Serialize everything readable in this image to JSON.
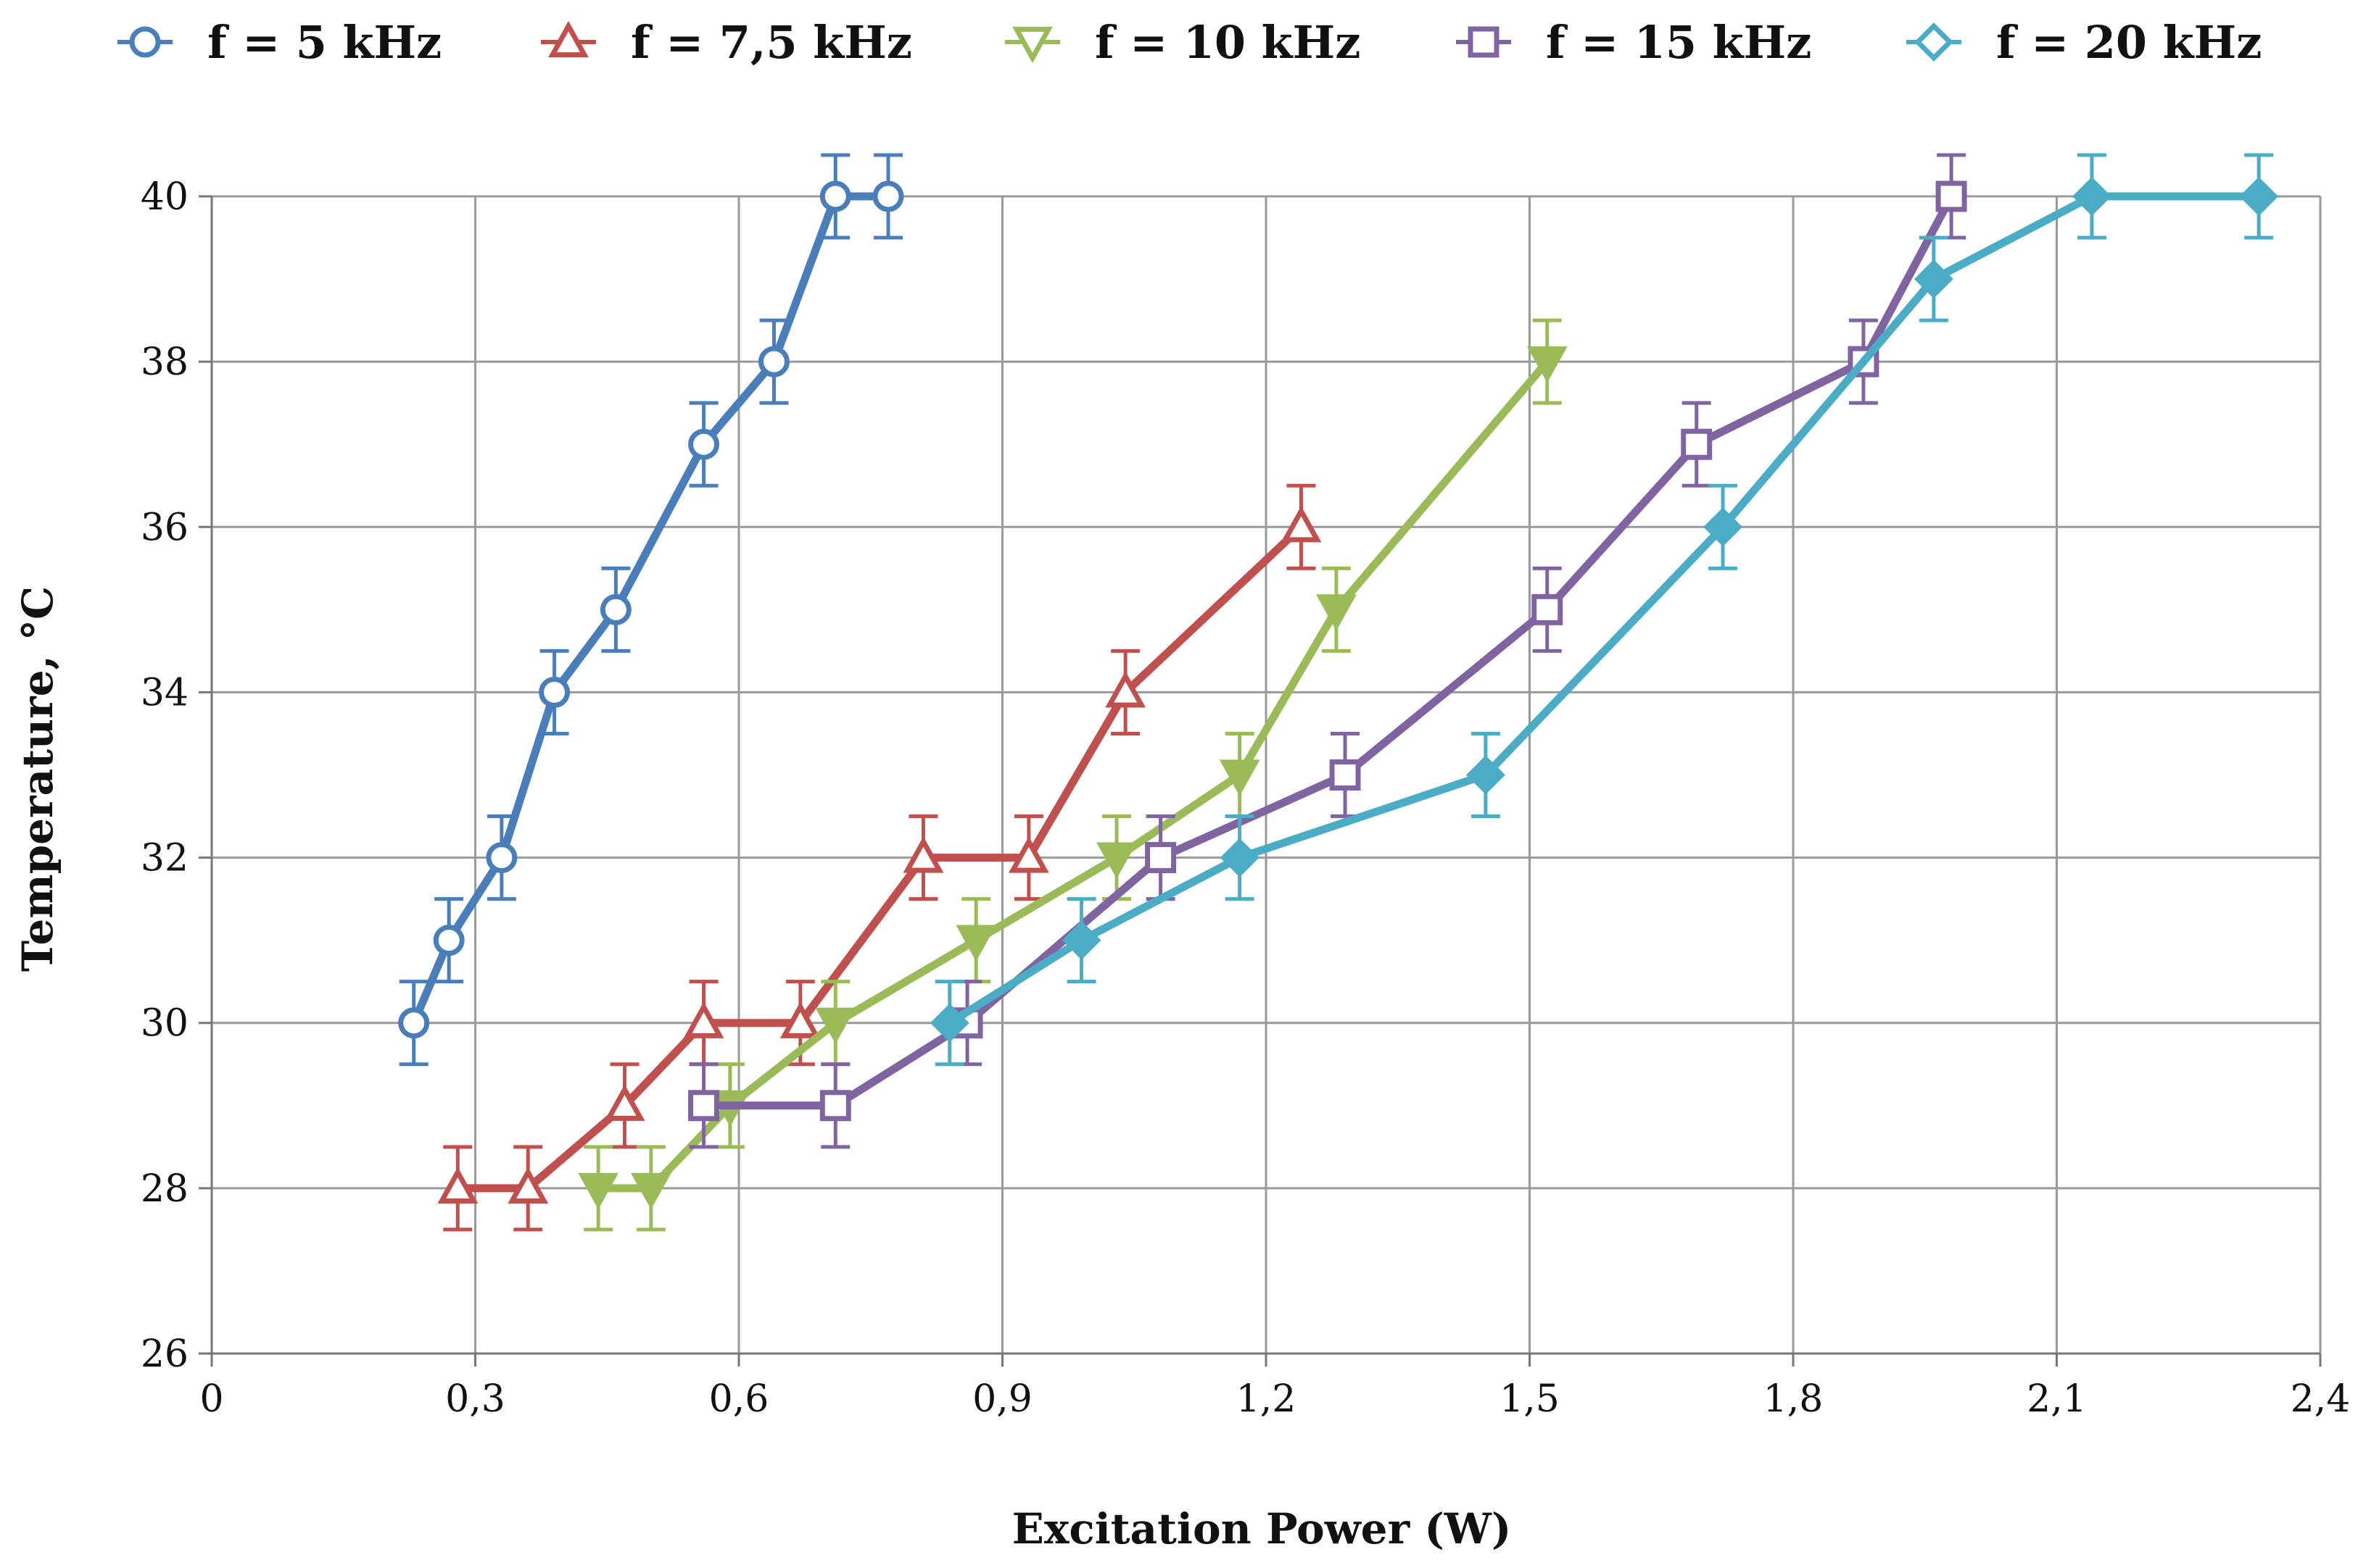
{
  "chart_data": {
    "type": "line",
    "title": "",
    "xlabel": "Excitation Power (W)",
    "ylabel": "Temperature, °C",
    "xlim": [
      0,
      2.4
    ],
    "ylim": [
      26,
      40
    ],
    "x_ticks": [
      {
        "value": 0,
        "label": "0"
      },
      {
        "value": 0.3,
        "label": "0,3"
      },
      {
        "value": 0.6,
        "label": "0,6"
      },
      {
        "value": 0.9,
        "label": "0,9"
      },
      {
        "value": 1.2,
        "label": "1,2"
      },
      {
        "value": 1.5,
        "label": "1,5"
      },
      {
        "value": 1.8,
        "label": "1,8"
      },
      {
        "value": 2.1,
        "label": "2,1"
      },
      {
        "value": 2.4,
        "label": "2,4"
      }
    ],
    "y_ticks": [
      {
        "value": 26,
        "label": "26"
      },
      {
        "value": 28,
        "label": "28"
      },
      {
        "value": 30,
        "label": "30"
      },
      {
        "value": 32,
        "label": "32"
      },
      {
        "value": 34,
        "label": "34"
      },
      {
        "value": 36,
        "label": "36"
      },
      {
        "value": 38,
        "label": "38"
      },
      {
        "value": 40,
        "label": "40"
      }
    ],
    "grid": true,
    "legend_position": "top",
    "error_bar": 0.5,
    "series": [
      {
        "name": "f = 5 kHz",
        "marker": "circle",
        "color": "#4a7ebb",
        "filled": false,
        "x": [
          0.23,
          0.27,
          0.33,
          0.39,
          0.46,
          0.56,
          0.64,
          0.71,
          0.77
        ],
        "y": [
          30,
          31,
          32,
          34,
          35,
          37,
          38,
          40,
          40
        ]
      },
      {
        "name": "f = 7,5 kHz",
        "marker": "triangle-up",
        "color": "#c0504d",
        "filled": false,
        "x": [
          0.28,
          0.36,
          0.47,
          0.56,
          0.67,
          0.81,
          0.93,
          1.04,
          1.24
        ],
        "y": [
          28,
          28,
          29,
          30,
          30,
          32,
          32,
          34,
          36
        ]
      },
      {
        "name": "f = 10 kHz",
        "marker": "triangle-down",
        "color": "#9bbb59",
        "filled": true,
        "x": [
          0.44,
          0.5,
          0.59,
          0.71,
          0.87,
          1.03,
          1.17,
          1.28,
          1.52
        ],
        "y": [
          28,
          28,
          29,
          30,
          31,
          32,
          33,
          35,
          38
        ]
      },
      {
        "name": "f = 15 kHz",
        "marker": "square",
        "color": "#8064a2",
        "filled": false,
        "x": [
          0.56,
          0.71,
          0.86,
          1.08,
          1.29,
          1.52,
          1.69,
          1.88,
          1.98
        ],
        "y": [
          29,
          29,
          30,
          32,
          33,
          35,
          37,
          38,
          40
        ]
      },
      {
        "name": "f = 20 kHz",
        "marker": "diamond",
        "color": "#4bacc6",
        "filled": true,
        "x": [
          0.84,
          0.99,
          1.17,
          1.45,
          1.72,
          1.96,
          2.14,
          2.33
        ],
        "y": [
          30,
          31,
          32,
          33,
          36,
          39,
          40,
          40
        ]
      }
    ]
  }
}
